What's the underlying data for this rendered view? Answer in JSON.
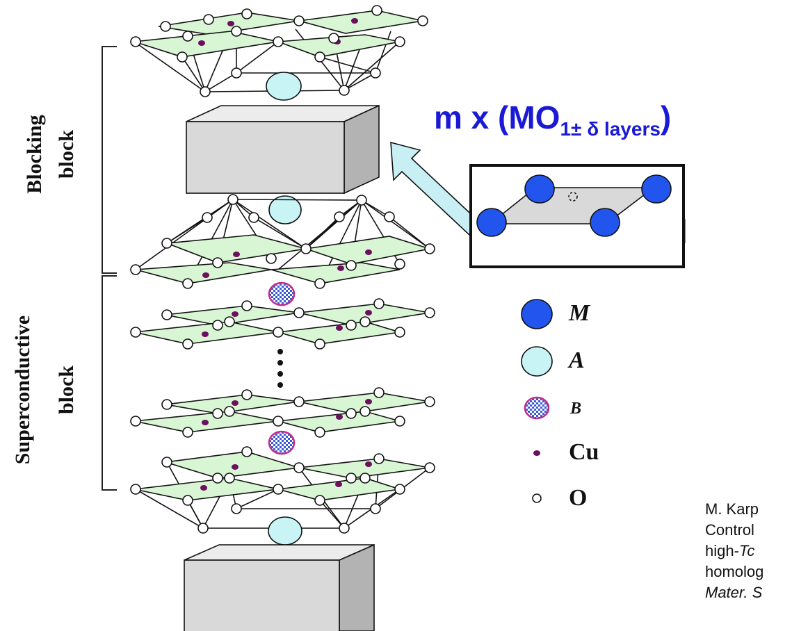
{
  "labels": {
    "blocking_line1": "Blocking",
    "blocking_line2": "block",
    "super_line1": "Superconductive",
    "super_line2": "block"
  },
  "title": {
    "prefix": "m x (MO",
    "subscript": "1± δ layers",
    "suffix": ")"
  },
  "legend": [
    {
      "symbol": "M",
      "label": "M",
      "color": "#2255ee"
    },
    {
      "symbol": "A",
      "label": "A",
      "color": "#c8f4f6"
    },
    {
      "symbol": "B",
      "label": "B",
      "color": "#3b5bd6"
    },
    {
      "symbol": "Cu",
      "label": "Cu",
      "color": "#6b0f5e"
    },
    {
      "symbol": "O",
      "label": "O",
      "color": "#ffffff"
    }
  ],
  "reference": {
    "line1": "M. Karp",
    "line2": "Control",
    "line3_a": "high-",
    "line3_b": "Tc",
    "line4": "homolog",
    "line5": "Mater. S"
  },
  "colors": {
    "sheet_fill": "#d8f5d4",
    "box_front": "#d9d9d9",
    "box_top": "#ececec",
    "box_side": "#b3b3b3",
    "arrow": "#c8f0f4",
    "title": "#1a1ad6"
  }
}
